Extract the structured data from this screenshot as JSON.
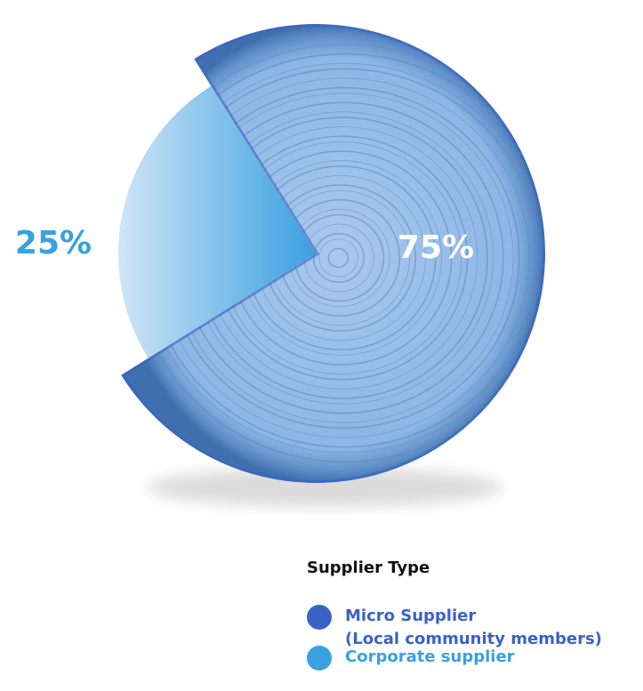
{
  "chart_data": {
    "type": "pie",
    "values": [
      75,
      25
    ],
    "value_labels": [
      "75%",
      "25%"
    ],
    "series": [
      {
        "name": "Micro Supplier\n(Local community members)",
        "color": "#3a62c4"
      },
      {
        "name": "Corporate supplier",
        "color": "#3aa0e0"
      }
    ],
    "legend_title": "Supplier Type"
  }
}
